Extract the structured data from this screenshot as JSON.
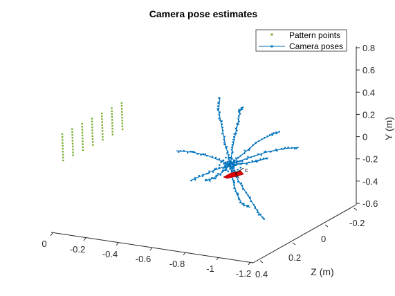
{
  "chart_data": {
    "type": "scatter",
    "title": "Camera pose estimates",
    "xlabel": "",
    "ylabel": "Y (m)",
    "zlabel": "Z (m)",
    "x_ticks": [
      "0",
      "-0.2",
      "-0.4",
      "-0.6",
      "-0.8",
      "-1",
      "-1.2"
    ],
    "y_ticks": [
      "0.8",
      "0.6",
      "0.4",
      "0.2",
      "0",
      "-0.2",
      "-0.4",
      "-0.6"
    ],
    "z_ticks": [
      "-0.2",
      "0",
      "0.2",
      "0.4"
    ],
    "legend": {
      "placement": "top-right",
      "entries": [
        "Pattern points",
        "Camera poses"
      ]
    },
    "series": [
      {
        "name": "Pattern points",
        "marker": "square-dot",
        "color": "#77ac30",
        "grid": {
          "rows": 10,
          "cols": 7
        }
      },
      {
        "name": "Camera poses",
        "marker": "line-dot",
        "color": "#0072bd",
        "arms": 10
      }
    ],
    "camera_marker_color": "#e00000",
    "camera_marker_label": "c",
    "grid": false
  }
}
